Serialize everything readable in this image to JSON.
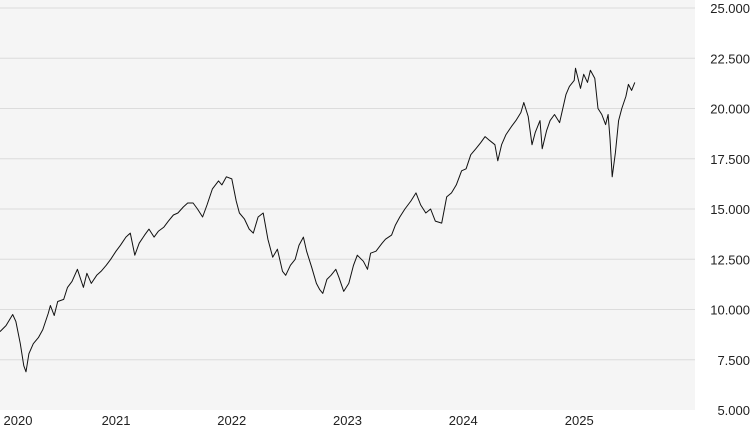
{
  "chart_data": {
    "type": "line",
    "title": "",
    "xlabel": "",
    "ylabel": "",
    "ylim": [
      5000,
      25000
    ],
    "xlim": [
      "2020-01-01",
      "2026-01-01"
    ],
    "grid": true,
    "legend": "none",
    "colors": {
      "line": "#111111",
      "plot_bg": "#f5f5f5",
      "grid": "#dcdcdc"
    },
    "x_ticks": [
      {
        "date": "2020-01-01",
        "label": "2020"
      },
      {
        "date": "2021-01-01",
        "label": "2021"
      },
      {
        "date": "2022-01-01",
        "label": "2022"
      },
      {
        "date": "2023-01-01",
        "label": "2023"
      },
      {
        "date": "2024-01-01",
        "label": "2024"
      },
      {
        "date": "2025-01-01",
        "label": "2025"
      }
    ],
    "y_ticks": [
      {
        "value": 5000,
        "label": "5.000"
      },
      {
        "value": 7500,
        "label": "7.500"
      },
      {
        "value": 10000,
        "label": "10.000"
      },
      {
        "value": 12500,
        "label": "12.500"
      },
      {
        "value": 15000,
        "label": "15.000"
      },
      {
        "value": 17500,
        "label": "17.500"
      },
      {
        "value": 20000,
        "label": "20.000"
      },
      {
        "value": 22500,
        "label": "22.500"
      },
      {
        "value": 25000,
        "label": "25.000"
      }
    ],
    "series": [
      {
        "x": [
          "2020-01-01",
          "2020-01-20",
          "2020-02-10",
          "2020-02-20",
          "2020-03-05",
          "2020-03-16",
          "2020-03-23",
          "2020-04-01",
          "2020-04-15",
          "2020-05-01",
          "2020-05-15",
          "2020-06-01",
          "2020-06-08",
          "2020-06-20",
          "2020-07-01",
          "2020-07-20",
          "2020-08-01",
          "2020-08-15",
          "2020-09-01",
          "2020-09-20",
          "2020-10-01",
          "2020-10-15",
          "2020-11-01",
          "2020-11-15",
          "2020-12-01",
          "2020-12-15",
          "2021-01-01",
          "2021-01-15",
          "2021-02-01",
          "2021-02-15",
          "2021-03-01",
          "2021-03-15",
          "2021-04-01",
          "2021-04-15",
          "2021-05-01",
          "2021-05-15",
          "2021-06-01",
          "2021-06-15",
          "2021-07-01",
          "2021-07-15",
          "2021-08-01",
          "2021-08-15",
          "2021-09-01",
          "2021-09-15",
          "2021-10-01",
          "2021-10-15",
          "2021-11-01",
          "2021-11-20",
          "2021-12-01",
          "2021-12-15",
          "2022-01-01",
          "2022-01-15",
          "2022-01-25",
          "2022-02-10",
          "2022-02-25",
          "2022-03-10",
          "2022-03-25",
          "2022-04-10",
          "2022-04-25",
          "2022-05-10",
          "2022-05-25",
          "2022-06-10",
          "2022-06-20",
          "2022-07-05",
          "2022-07-20",
          "2022-08-01",
          "2022-08-15",
          "2022-08-25",
          "2022-09-10",
          "2022-09-25",
          "2022-10-05",
          "2022-10-15",
          "2022-10-28",
          "2022-11-10",
          "2022-11-25",
          "2022-12-05",
          "2022-12-20",
          "2023-01-05",
          "2023-01-20",
          "2023-02-01",
          "2023-02-20",
          "2023-03-05",
          "2023-03-15",
          "2023-04-01",
          "2023-04-20",
          "2023-05-01",
          "2023-05-20",
          "2023-06-01",
          "2023-06-15",
          "2023-07-01",
          "2023-07-20",
          "2023-08-05",
          "2023-08-20",
          "2023-09-05",
          "2023-09-20",
          "2023-10-05",
          "2023-10-25",
          "2023-11-10",
          "2023-11-25",
          "2023-12-10",
          "2023-12-27",
          "2024-01-10",
          "2024-01-25",
          "2024-02-10",
          "2024-02-25",
          "2024-03-10",
          "2024-03-25",
          "2024-04-10",
          "2024-04-19",
          "2024-05-01",
          "2024-05-15",
          "2024-06-01",
          "2024-06-15",
          "2024-07-01",
          "2024-07-10",
          "2024-07-24",
          "2024-08-05",
          "2024-08-15",
          "2024-08-30",
          "2024-09-06",
          "2024-09-20",
          "2024-10-01",
          "2024-10-15",
          "2024-10-31",
          "2024-11-10",
          "2024-11-20",
          "2024-12-01",
          "2024-12-16",
          "2024-12-20",
          "2025-01-05",
          "2025-01-15",
          "2025-01-27",
          "2025-02-05",
          "2025-02-19",
          "2025-03-01",
          "2025-03-13",
          "2025-03-25",
          "2025-04-02",
          "2025-04-08",
          "2025-04-15",
          "2025-04-25",
          "2025-05-05",
          "2025-05-15",
          "2025-05-28",
          "2025-06-05",
          "2025-06-15",
          "2025-06-25"
        ],
        "y": [
          8900,
          9200,
          9750,
          9400,
          8300,
          7200,
          6900,
          7800,
          8300,
          8600,
          9000,
          9800,
          10200,
          9700,
          10400,
          10500,
          11100,
          11400,
          12000,
          11100,
          11800,
          11300,
          11700,
          11900,
          12200,
          12500,
          12900,
          13200,
          13600,
          13800,
          12700,
          13300,
          13700,
          14000,
          13600,
          13900,
          14100,
          14400,
          14700,
          14800,
          15100,
          15300,
          15300,
          15000,
          14600,
          15200,
          16000,
          16400,
          16200,
          16600,
          16500,
          15400,
          14800,
          14500,
          14000,
          13800,
          14600,
          14800,
          13500,
          12600,
          13000,
          11900,
          11700,
          12200,
          12500,
          13200,
          13600,
          12900,
          12100,
          11300,
          11000,
          10800,
          11500,
          11700,
          12000,
          11600,
          10900,
          11300,
          12200,
          12700,
          12400,
          12000,
          12800,
          12900,
          13300,
          13500,
          13700,
          14200,
          14600,
          15000,
          15400,
          15800,
          15200,
          14800,
          15000,
          14400,
          14300,
          15600,
          15800,
          16200,
          16900,
          17000,
          17700,
          18000,
          18300,
          18600,
          18400,
          18200,
          17400,
          18200,
          18700,
          19100,
          19400,
          19800,
          20300,
          19600,
          18200,
          18800,
          19400,
          18000,
          18900,
          19400,
          19700,
          19300,
          20000,
          20700,
          21100,
          21400,
          22000,
          21000,
          21700,
          21300,
          21900,
          21500,
          20000,
          19700,
          19200,
          19700,
          18500,
          16600,
          17800,
          19400,
          20000,
          20600,
          21200,
          20900,
          21300
        ]
      }
    ]
  }
}
